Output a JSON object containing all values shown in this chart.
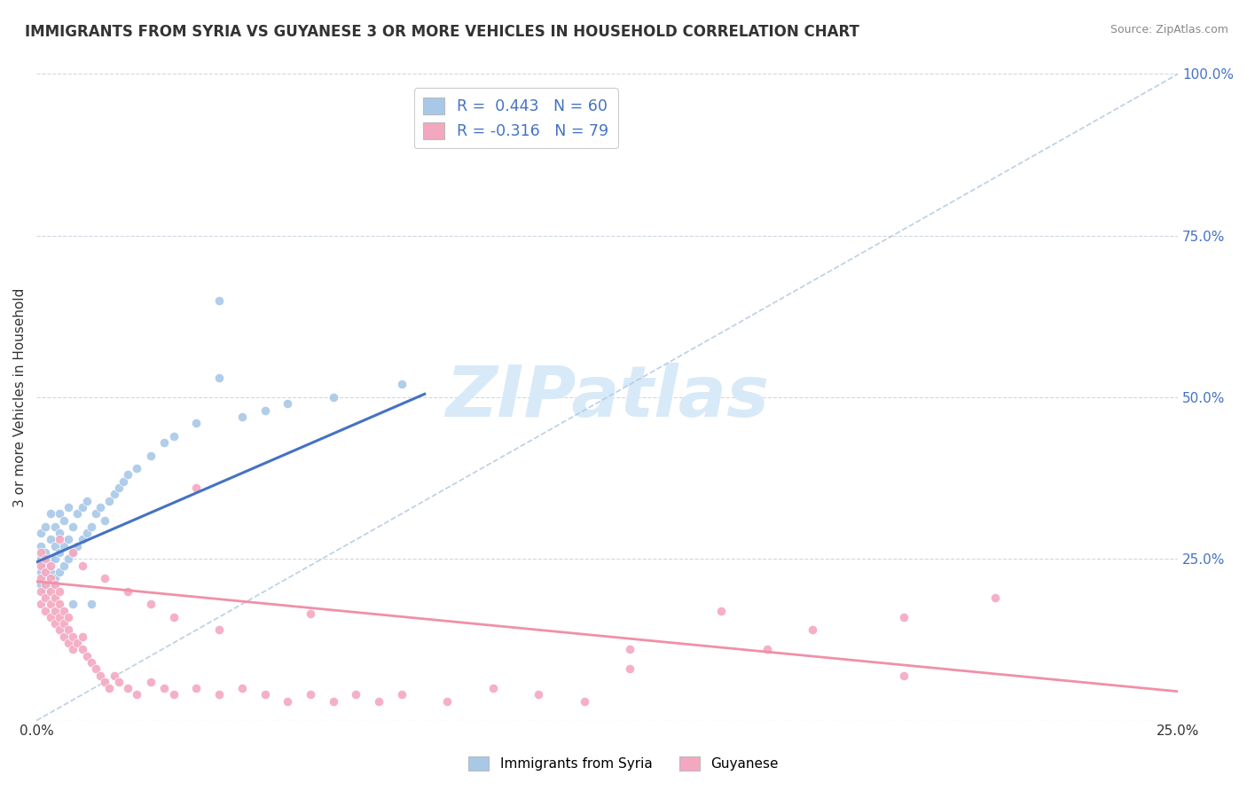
{
  "title": "IMMIGRANTS FROM SYRIA VS GUYANESE 3 OR MORE VEHICLES IN HOUSEHOLD CORRELATION CHART",
  "source": "Source: ZipAtlas.com",
  "ylabel": "3 or more Vehicles in Household",
  "y_tick_labels": [
    "",
    "25.0%",
    "50.0%",
    "75.0%",
    "100.0%"
  ],
  "y_ticks": [
    0.0,
    0.25,
    0.5,
    0.75,
    1.0
  ],
  "xlim": [
    0,
    0.25
  ],
  "ylim": [
    0,
    1.0
  ],
  "R1": 0.443,
  "N1": 60,
  "R2": -0.316,
  "N2": 79,
  "color_blue_scatter": "#a8c8e8",
  "color_pink_scatter": "#f4a8c0",
  "color_blue_line": "#4472c4",
  "color_pink_line": "#f090a8",
  "color_dashed": "#b0c8e0",
  "color_grid": "#d0d8e0",
  "watermark_text": "ZIPatlas",
  "watermark_color": "#d8eaf8",
  "background_color": "#ffffff",
  "blue_line_x": [
    0.0,
    0.085
  ],
  "blue_line_y": [
    0.245,
    0.505
  ],
  "pink_line_x": [
    0.0,
    0.25
  ],
  "pink_line_y": [
    0.215,
    0.045
  ],
  "dashed_line_x": [
    0.0,
    0.25
  ],
  "dashed_line_y": [
    0.0,
    1.0
  ],
  "blue_scatter_x": [
    0.001,
    0.001,
    0.001,
    0.001,
    0.001,
    0.002,
    0.002,
    0.002,
    0.002,
    0.002,
    0.003,
    0.003,
    0.003,
    0.003,
    0.003,
    0.004,
    0.004,
    0.004,
    0.004,
    0.005,
    0.005,
    0.005,
    0.005,
    0.006,
    0.006,
    0.006,
    0.007,
    0.007,
    0.007,
    0.008,
    0.008,
    0.009,
    0.009,
    0.01,
    0.01,
    0.011,
    0.011,
    0.012,
    0.013,
    0.014,
    0.015,
    0.016,
    0.017,
    0.018,
    0.019,
    0.02,
    0.022,
    0.025,
    0.028,
    0.03,
    0.035,
    0.04,
    0.045,
    0.05,
    0.055,
    0.065,
    0.08,
    0.008,
    0.012,
    0.04
  ],
  "blue_scatter_y": [
    0.21,
    0.23,
    0.25,
    0.27,
    0.29,
    0.2,
    0.22,
    0.24,
    0.26,
    0.3,
    0.21,
    0.23,
    0.25,
    0.28,
    0.32,
    0.22,
    0.25,
    0.27,
    0.3,
    0.23,
    0.26,
    0.29,
    0.32,
    0.24,
    0.27,
    0.31,
    0.25,
    0.28,
    0.33,
    0.26,
    0.3,
    0.27,
    0.32,
    0.28,
    0.33,
    0.29,
    0.34,
    0.3,
    0.32,
    0.33,
    0.31,
    0.34,
    0.35,
    0.36,
    0.37,
    0.38,
    0.39,
    0.41,
    0.43,
    0.44,
    0.46,
    0.65,
    0.47,
    0.48,
    0.49,
    0.5,
    0.52,
    0.18,
    0.18,
    0.53
  ],
  "pink_scatter_x": [
    0.001,
    0.001,
    0.001,
    0.001,
    0.001,
    0.002,
    0.002,
    0.002,
    0.002,
    0.002,
    0.003,
    0.003,
    0.003,
    0.003,
    0.003,
    0.004,
    0.004,
    0.004,
    0.004,
    0.005,
    0.005,
    0.005,
    0.005,
    0.006,
    0.006,
    0.006,
    0.007,
    0.007,
    0.007,
    0.008,
    0.008,
    0.009,
    0.01,
    0.01,
    0.011,
    0.012,
    0.013,
    0.014,
    0.015,
    0.016,
    0.017,
    0.018,
    0.02,
    0.022,
    0.025,
    0.028,
    0.03,
    0.035,
    0.04,
    0.045,
    0.05,
    0.055,
    0.06,
    0.065,
    0.07,
    0.075,
    0.08,
    0.09,
    0.1,
    0.11,
    0.12,
    0.13,
    0.15,
    0.17,
    0.19,
    0.21,
    0.035,
    0.06,
    0.13,
    0.16,
    0.19,
    0.005,
    0.008,
    0.01,
    0.015,
    0.02,
    0.025,
    0.03,
    0.04
  ],
  "pink_scatter_y": [
    0.18,
    0.2,
    0.22,
    0.24,
    0.26,
    0.17,
    0.19,
    0.21,
    0.23,
    0.25,
    0.16,
    0.18,
    0.2,
    0.22,
    0.24,
    0.15,
    0.17,
    0.19,
    0.21,
    0.14,
    0.16,
    0.18,
    0.2,
    0.13,
    0.15,
    0.17,
    0.12,
    0.14,
    0.16,
    0.11,
    0.13,
    0.12,
    0.11,
    0.13,
    0.1,
    0.09,
    0.08,
    0.07,
    0.06,
    0.05,
    0.07,
    0.06,
    0.05,
    0.04,
    0.06,
    0.05,
    0.04,
    0.05,
    0.04,
    0.05,
    0.04,
    0.03,
    0.04,
    0.03,
    0.04,
    0.03,
    0.04,
    0.03,
    0.05,
    0.04,
    0.03,
    0.08,
    0.17,
    0.14,
    0.07,
    0.19,
    0.36,
    0.165,
    0.11,
    0.11,
    0.16,
    0.28,
    0.26,
    0.24,
    0.22,
    0.2,
    0.18,
    0.16,
    0.14
  ]
}
